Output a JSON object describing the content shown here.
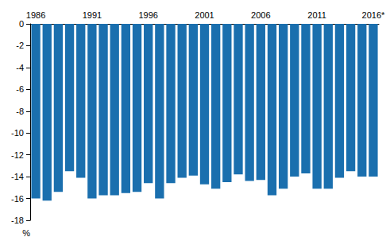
{
  "chart_data": {
    "type": "bar",
    "y_label": "%",
    "categories": [
      "1986",
      null,
      null,
      null,
      null,
      "1991",
      null,
      null,
      null,
      null,
      "1996",
      null,
      null,
      null,
      null,
      "2001",
      null,
      null,
      null,
      null,
      "2006",
      null,
      null,
      null,
      null,
      "2011",
      null,
      null,
      null,
      null,
      "2016*"
    ],
    "values": [
      -16.0,
      -16.2,
      -15.4,
      -13.5,
      -14.1,
      -16.0,
      -15.7,
      -15.7,
      -15.5,
      -15.4,
      -14.6,
      -16.0,
      -14.6,
      -14.1,
      -13.9,
      -14.7,
      -15.1,
      -14.5,
      -13.8,
      -14.4,
      -14.3,
      -15.7,
      -15.1,
      -14.0,
      -13.7,
      -15.1,
      -15.1,
      -14.1,
      -13.5,
      -14.0,
      -14.0
    ],
    "color": "#1a6fae",
    "ylim": [
      -18,
      0
    ],
    "yticks": [
      -18,
      -16,
      -14,
      -12,
      -10,
      -8,
      -6,
      -4,
      -2,
      0
    ],
    "grid": false
  }
}
